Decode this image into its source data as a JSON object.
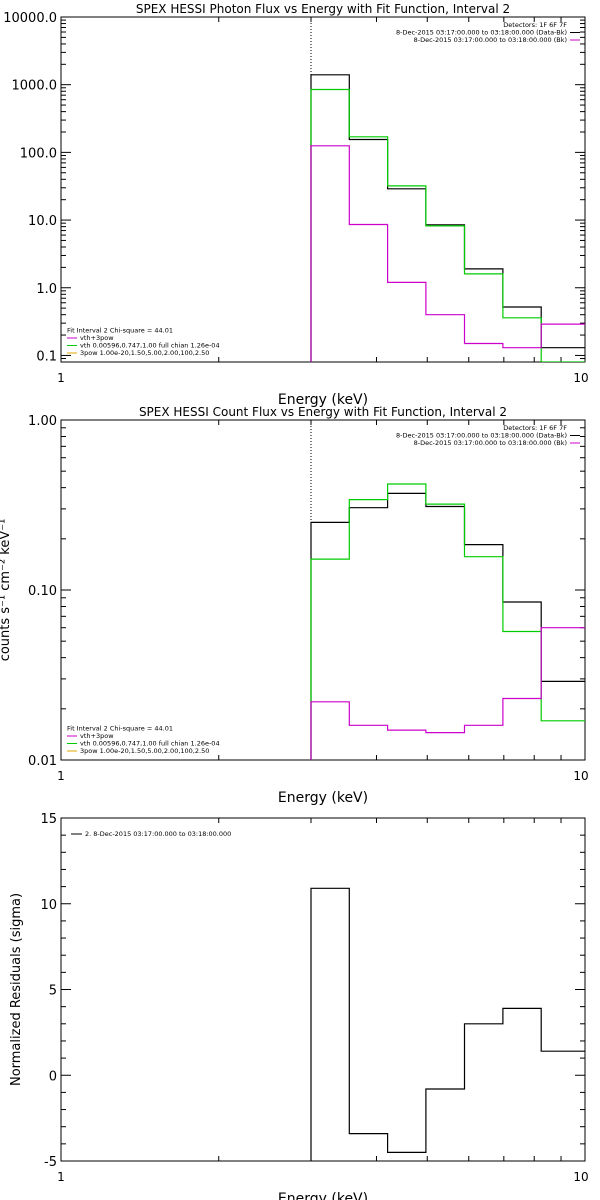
{
  "chart_data": [
    {
      "type": "line",
      "title": "SPEX HESSI Photon Flux vs Energy with Fit Function, Interval 2",
      "xlabel": "Energy (keV)",
      "ylabel": "",
      "xscale": "log",
      "yscale": "log",
      "xlim": [
        1,
        10
      ],
      "ylim": [
        0.08,
        10000
      ],
      "xticks": [
        "1",
        "10"
      ],
      "yticks": [
        {
          "v": 0.1,
          "label": "0.1"
        },
        {
          "v": 1,
          "label": "1.0"
        },
        {
          "v": 10,
          "label": "10.0"
        },
        {
          "v": 100,
          "label": "100.0"
        },
        {
          "v": 1000,
          "label": "1000.0"
        },
        {
          "v": 10000,
          "label": "10000.0"
        }
      ],
      "vline_x": 3.0,
      "legend_top_right": [
        {
          "text": "Detectors: 1F 6F 7F",
          "color": ""
        },
        {
          "text": "8-Dec-2015 03:17:00.000 to 03:18:00.000 (Data-Bk)",
          "color": "#000000"
        },
        {
          "text": "8-Dec-2015 03:17:00.000 to 03:18:00.000 (Bk)",
          "color": "#cc00cc"
        }
      ],
      "legend_bottom_left": [
        {
          "text": "Fit Interval 2   Chi-square = 44.01",
          "color": ""
        },
        {
          "text": "vth+3pow",
          "color": "#cc00cc"
        },
        {
          "text": "vth 0.00596,0.747,1.00  full chian 1.26e-04",
          "color": "#00cc00"
        },
        {
          "text": "3pow 1.00e-20,1.50,5.00,2.00,100,2.50",
          "color": "#ddaa00"
        }
      ],
      "edges": [
        3.0,
        3.55,
        4.2,
        4.97,
        5.89,
        6.97,
        8.25,
        9.78,
        10
      ],
      "series": [
        {
          "name": "8-Dec-2015 03:17:00.000 to 03:18:00.000 (Data-Bk)",
          "color": "#000000",
          "values": [
            1400,
            155,
            29,
            8.5,
            1.9,
            0.52,
            0.13,
            0.13
          ]
        },
        {
          "name": "vth 0.00596,0.747,1.00  full chian 1.26e-04",
          "color": "#00cc00",
          "values": [
            850,
            170,
            32,
            8.2,
            1.6,
            0.36,
            0.08,
            0.08
          ]
        },
        {
          "name": "8-Dec-2015 03:17:00.000 to 03:18:00.000 (Bk)",
          "color": "#cc00cc",
          "values": [
            125,
            8.6,
            1.2,
            0.4,
            0.15,
            0.13,
            0.29,
            0.29
          ]
        }
      ]
    },
    {
      "type": "line",
      "title": "SPEX HESSI Count Flux vs Energy with Fit Function, Interval 2",
      "xlabel": "Energy (keV)",
      "ylabel": "counts s⁻¹ cm⁻² keV⁻¹",
      "xscale": "log",
      "yscale": "log",
      "xlim": [
        1,
        10
      ],
      "ylim": [
        0.01,
        1.0
      ],
      "xticks": [
        "1",
        "10"
      ],
      "yticks": [
        {
          "v": 0.01,
          "label": "0.01"
        },
        {
          "v": 0.1,
          "label": "0.10"
        },
        {
          "v": 1.0,
          "label": "1.00"
        }
      ],
      "vline_x": 3.0,
      "legend_top_right": [
        {
          "text": "Detectors: 1F 6F 7F",
          "color": ""
        },
        {
          "text": "8-Dec-2015 03:17:00.000 to 03:18:00.000 (Data-Bk)",
          "color": "#000000"
        },
        {
          "text": "8-Dec-2015 03:17:00.000 to 03:18:00.000 (Bk)",
          "color": "#cc00cc"
        }
      ],
      "legend_bottom_left": [
        {
          "text": "Fit Interval 2   Chi-square = 44.01",
          "color": ""
        },
        {
          "text": "vth+3pow",
          "color": "#cc00cc"
        },
        {
          "text": "vth 0.00596,0.747,1.00  full chian 1.26e-04",
          "color": "#00cc00"
        },
        {
          "text": "3pow 1.00e-20,1.50,5.00,2.00,100,2.50",
          "color": "#ddaa00"
        }
      ],
      "edges": [
        3.0,
        3.55,
        4.2,
        4.97,
        5.89,
        6.97,
        8.25,
        9.78,
        10
      ],
      "series": [
        {
          "name": "8-Dec-2015 03:17:00.000 to 03:18:00.000 (Data-Bk)",
          "color": "#000000",
          "values": [
            0.25,
            0.305,
            0.37,
            0.31,
            0.185,
            0.085,
            0.029,
            0.029
          ]
        },
        {
          "name": "vth 0.00596,0.747,1.00  full chian 1.26e-04",
          "color": "#00cc00",
          "values": [
            0.152,
            0.34,
            0.42,
            0.32,
            0.157,
            0.057,
            0.017,
            0.017
          ]
        },
        {
          "name": "8-Dec-2015 03:17:00.000 to 03:18:00.000 (Bk)",
          "color": "#cc00cc",
          "values": [
            0.022,
            0.016,
            0.015,
            0.0145,
            0.016,
            0.023,
            0.06,
            0.06
          ]
        }
      ]
    },
    {
      "type": "line",
      "title": "",
      "xlabel": "Energy (keV)",
      "ylabel": "Normalized Residuals (sigma)",
      "xscale": "log",
      "yscale": "linear",
      "xlim": [
        1,
        10
      ],
      "ylim": [
        -5,
        15
      ],
      "xticks": [
        "1",
        "10"
      ],
      "yticks": [
        {
          "v": -5,
          "label": "-5"
        },
        {
          "v": 0,
          "label": "0"
        },
        {
          "v": 5,
          "label": "5"
        },
        {
          "v": 10,
          "label": "10"
        },
        {
          "v": 15,
          "label": "15"
        }
      ],
      "legend_top_left": [
        {
          "text": "2. 8-Dec-2015 03:17:00.000 to 03:18:00.000",
          "color": "#000000"
        }
      ],
      "edges": [
        3.0,
        3.55,
        4.2,
        4.97,
        5.89,
        6.97,
        8.25,
        9.78,
        10
      ],
      "series": [
        {
          "name": "2. 8-Dec-2015 03:17:00.000 to 03:18:00.000",
          "color": "#000000",
          "values": [
            10.9,
            -3.4,
            -4.5,
            -0.8,
            3.0,
            3.9,
            1.4,
            1.4
          ]
        }
      ]
    }
  ]
}
